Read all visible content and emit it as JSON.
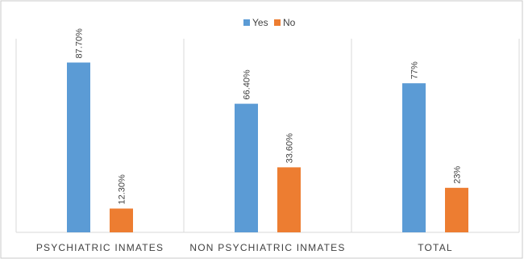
{
  "chart_data": {
    "type": "bar",
    "title": "",
    "xlabel": "",
    "ylabel": "",
    "ylim": [
      0,
      100
    ],
    "grid": false,
    "legend_position": "top",
    "categories": [
      "PSYCHIATRIC INMATES",
      "NON PSYCHIATRIC INMATES",
      "TOTAL"
    ],
    "series": [
      {
        "name": "Yes",
        "color": "#5b9bd5",
        "values": [
          87.7,
          66.4,
          77
        ],
        "labels": [
          "87.70%",
          "66.40%",
          "77%"
        ]
      },
      {
        "name": "No",
        "color": "#ed7d31",
        "values": [
          12.3,
          33.6,
          23
        ],
        "labels": [
          "12.30%",
          "33.60%",
          "23%"
        ]
      }
    ]
  }
}
